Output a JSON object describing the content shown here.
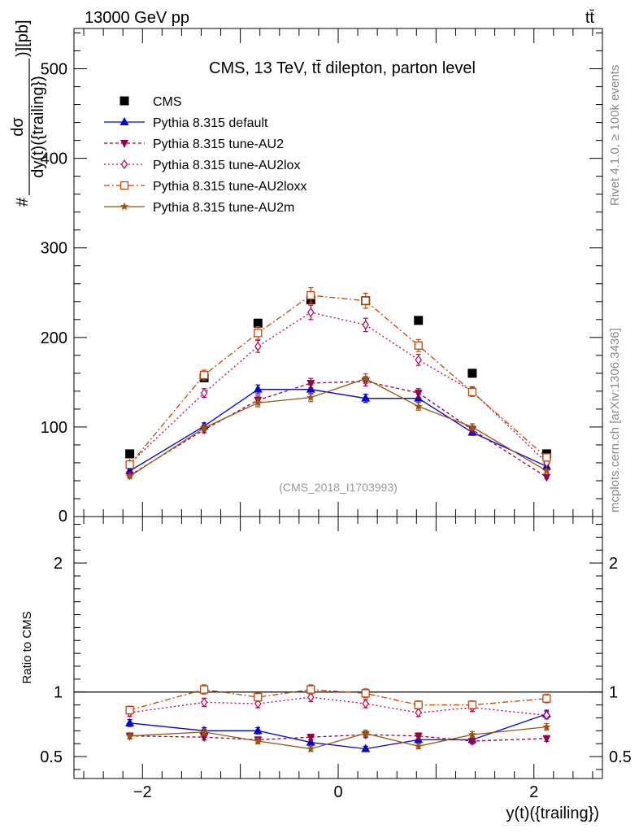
{
  "header": {
    "left": "13000 GeV pp",
    "right": "tt̄"
  },
  "side_labels": {
    "rivet": "Rivet 4.1.0, ≥ 100k events",
    "source": "mcplots.cern.ch [arXiv:1306.3436]"
  },
  "colors": {
    "cms": "#000000",
    "default": "#0000dd",
    "AU2": "#990044",
    "AU2lox": "#bb0055",
    "AU2loxx": "#cc4400",
    "AU2m": "#995511"
  },
  "chart_data": [
    {
      "type": "line",
      "title": "CMS, 13 TeV, tt̄ dilepton, parton level",
      "watermark": "(CMS_2018_I1703993)",
      "ylabel_top": "dσ",
      "ylabel_prefix": "#",
      "ylabel_bottom": "dy(t)({trailing})",
      "ylabel_suffix": ")][pb]",
      "xlabel": "y(t)({trailing})",
      "xlim": [
        -2.7,
        2.7
      ],
      "ylim": [
        0,
        545
      ],
      "xticks": [
        -2,
        0,
        2
      ],
      "xtick_labels": [
        "−2",
        "0",
        "2"
      ],
      "yticks": [
        100,
        200,
        300,
        400,
        500
      ],
      "ytick_labels": [
        "100",
        "200",
        "300",
        "400",
        "500"
      ],
      "x": [
        -2.13,
        -1.37,
        -0.82,
        -0.28,
        0.28,
        0.82,
        1.37,
        2.13
      ],
      "series": [
        {
          "name": "CMS",
          "key": "cms",
          "values": [
            70,
            155,
            216,
            242,
            241,
            219,
            160,
            70
          ]
        },
        {
          "name": "Pythia 8.315 default",
          "key": "default",
          "values": [
            51,
            101,
            142,
            142,
            132,
            132,
            94,
            56
          ]
        },
        {
          "name": "Pythia 8.315 tune-AU2",
          "key": "AU2",
          "values": [
            46,
            97,
            130,
            149,
            151,
            138,
            97,
            44
          ]
        },
        {
          "name": "Pythia 8.315 tune-AU2lox",
          "key": "AU2lox",
          "values": [
            59,
            138,
            190,
            228,
            214,
            175,
            140,
            60
          ]
        },
        {
          "name": "Pythia 8.315 tune-AU2loxx",
          "key": "AU2loxx",
          "values": [
            58,
            158,
            205,
            247,
            241,
            191,
            139,
            66
          ]
        },
        {
          "name": "Pythia 8.315 tune-AU2m",
          "key": "AU2m",
          "values": [
            45,
            99,
            127,
            133,
            154,
            123,
            100,
            51
          ]
        }
      ]
    },
    {
      "type": "line",
      "ylabel": "Ratio to CMS",
      "xlabel": "y(t)({trailing})",
      "xlim": [
        -2.7,
        2.7
      ],
      "ylim": [
        0.33,
        2.36
      ],
      "yticks": [
        0.5,
        1,
        2
      ],
      "ytick_labels": [
        "0.5",
        "1",
        "2"
      ],
      "reference_line": 1,
      "x": [
        -2.13,
        -1.37,
        -0.82,
        -0.28,
        0.28,
        0.82,
        1.37,
        2.13
      ],
      "series": [
        {
          "name": "Pythia 8.315 default",
          "key": "default",
          "values": [
            0.76,
            0.7,
            0.7,
            0.61,
            0.56,
            0.63,
            0.63,
            0.83
          ]
        },
        {
          "name": "Pythia 8.315 tune-AU2",
          "key": "AU2",
          "values": [
            0.66,
            0.65,
            0.63,
            0.65,
            0.67,
            0.66,
            0.62,
            0.64
          ]
        },
        {
          "name": "Pythia 8.315 tune-AU2lox",
          "key": "AU2lox",
          "values": [
            0.84,
            0.92,
            0.91,
            0.96,
            0.91,
            0.84,
            0.88,
            0.82
          ]
        },
        {
          "name": "Pythia 8.315 tune-AU2loxx",
          "key": "AU2loxx",
          "values": [
            0.86,
            1.02,
            0.96,
            1.02,
            0.99,
            0.9,
            0.9,
            0.95
          ]
        },
        {
          "name": "Pythia 8.315 tune-AU2m",
          "key": "AU2m",
          "values": [
            0.66,
            0.69,
            0.62,
            0.56,
            0.68,
            0.58,
            0.67,
            0.73
          ]
        }
      ]
    }
  ]
}
